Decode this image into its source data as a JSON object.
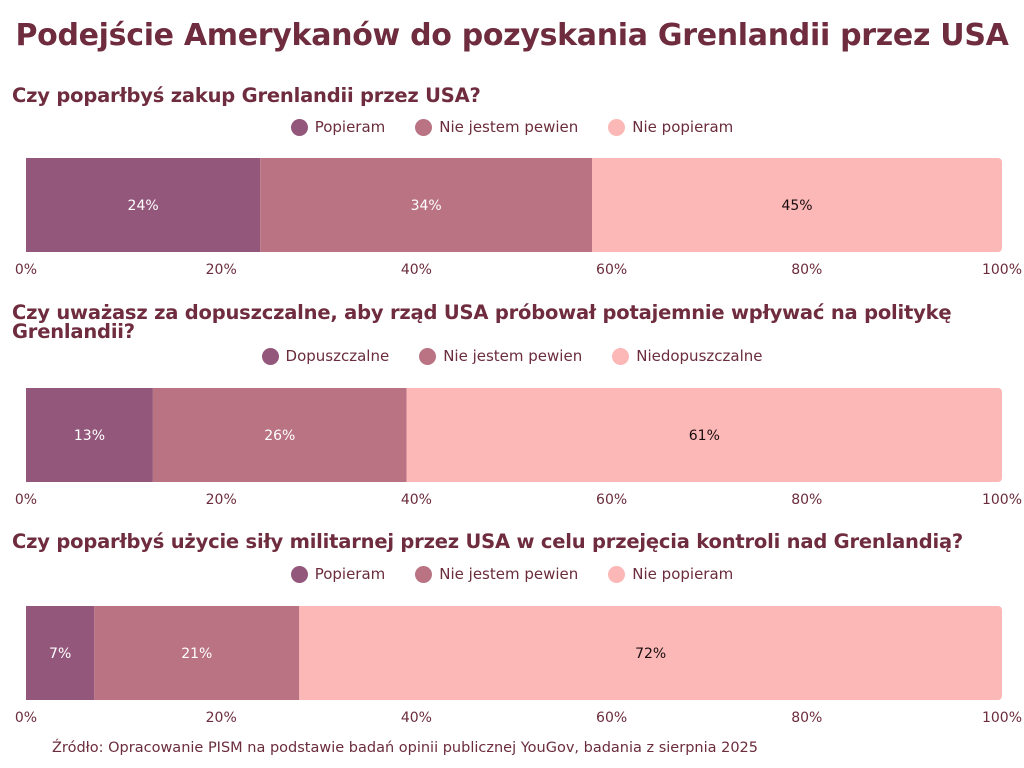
{
  "title": "Podejście Amerykanów do pozyskania Grenlandii przez USA",
  "source": "Źródło: Opracowanie PISM na podstawie badań opinii publicznej YouGov, badania z sierpnia 2025",
  "colors": [
    "#93577b",
    "#b97383",
    "#fbb8b6"
  ],
  "chart_data": [
    {
      "type": "bar",
      "orientation": "horizontal-stacked",
      "title": "Czy poparłbyś zakup Grenlandii przez USA?",
      "categories": [
        "Popieram",
        "Nie jestem pewien",
        "Nie popieram"
      ],
      "values": [
        24,
        34,
        45
      ],
      "labels": [
        "24%",
        "34%",
        "45%"
      ],
      "xlim": [
        0,
        100
      ],
      "ticks": [
        "0%",
        "20%",
        "40%",
        "60%",
        "80%",
        "100%"
      ],
      "legend": "top-center"
    },
    {
      "type": "bar",
      "orientation": "horizontal-stacked",
      "title": "Czy uważasz za dopuszczalne, aby rząd USA próbował potajemnie wpływać na politykę Grenlandii?",
      "categories": [
        "Dopuszczalne",
        "Nie jestem pewien",
        "Niedopuszczalne"
      ],
      "values": [
        13,
        26,
        61
      ],
      "labels": [
        "13%",
        "26%",
        "61%"
      ],
      "xlim": [
        0,
        100
      ],
      "ticks": [
        "0%",
        "20%",
        "40%",
        "60%",
        "80%",
        "100%"
      ],
      "legend": "top-center"
    },
    {
      "type": "bar",
      "orientation": "horizontal-stacked",
      "title": "Czy poparłbyś użycie siły militarnej przez USA w celu przejęcia kontroli nad Grenlandią?",
      "categories": [
        "Popieram",
        "Nie jestem pewien",
        "Nie popieram"
      ],
      "values": [
        7,
        21,
        72
      ],
      "labels": [
        "7%",
        "21%",
        "72%"
      ],
      "xlim": [
        0,
        100
      ],
      "ticks": [
        "0%",
        "20%",
        "40%",
        "60%",
        "80%",
        "100%"
      ],
      "legend": "top-center"
    }
  ]
}
